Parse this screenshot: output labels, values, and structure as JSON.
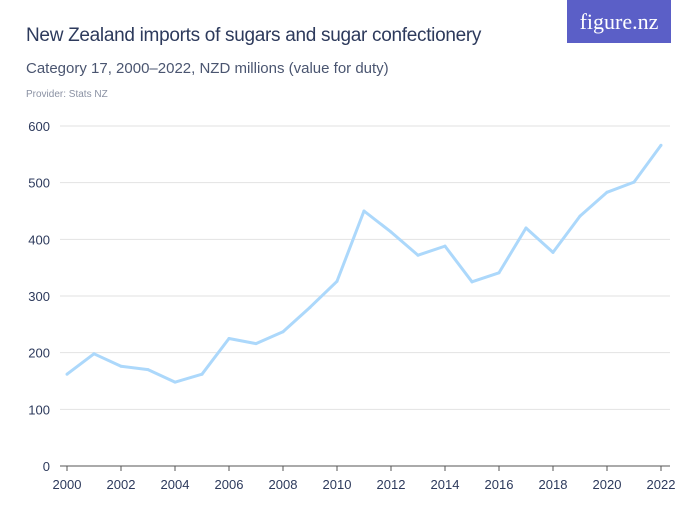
{
  "header": {
    "title": "New Zealand imports of sugars and sugar confectionery",
    "subtitle": "Category 17, 2000–2022, NZD millions (value for duty)",
    "provider": "Provider: Stats NZ",
    "logo": "figure.nz",
    "logo_color": "#5b5fc7"
  },
  "chart_data": {
    "type": "line",
    "title": "New Zealand imports of sugars and sugar confectionery",
    "subtitle": "Category 17, 2000–2022, NZD millions (value for duty)",
    "x": [
      2000,
      2001,
      2002,
      2003,
      2004,
      2005,
      2006,
      2007,
      2008,
      2009,
      2010,
      2011,
      2012,
      2013,
      2014,
      2015,
      2016,
      2017,
      2018,
      2019,
      2020,
      2021,
      2022
    ],
    "series": [
      {
        "values": [
          162,
          198,
          176,
          170,
          148,
          162,
          225,
          216,
          237,
          280,
          326,
          450,
          413,
          372,
          388,
          325,
          341,
          420,
          377,
          441,
          483,
          501,
          566
        ],
        "color": "#acd8fb"
      }
    ],
    "ylim": [
      0,
      600
    ],
    "yticks": [
      0,
      100,
      200,
      300,
      400,
      500,
      600
    ],
    "xticks": [
      2000,
      2002,
      2004,
      2006,
      2008,
      2010,
      2012,
      2014,
      2016,
      2018,
      2020,
      2022
    ],
    "grid": true
  }
}
